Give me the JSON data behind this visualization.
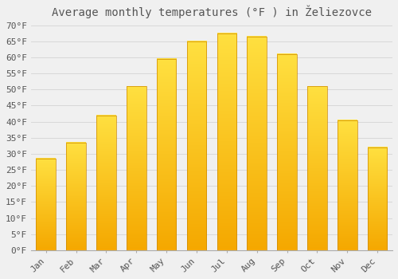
{
  "title": "Average monthly temperatures (°F ) in Želiezovce",
  "months": [
    "Jan",
    "Feb",
    "Mar",
    "Apr",
    "May",
    "Jun",
    "Jul",
    "Aug",
    "Sep",
    "Oct",
    "Nov",
    "Dec"
  ],
  "values": [
    28.5,
    33.5,
    42.0,
    51.0,
    59.5,
    65.0,
    67.5,
    66.5,
    61.0,
    51.0,
    40.5,
    32.0
  ],
  "bar_color_bottom": "#F5A800",
  "bar_color_top": "#FFE040",
  "bar_color_mid": "#FFC020",
  "background_color": "#f0f0f0",
  "grid_color": "#d8d8d8",
  "text_color": "#555555",
  "ylim": [
    0,
    70
  ],
  "title_fontsize": 10,
  "tick_fontsize": 8
}
